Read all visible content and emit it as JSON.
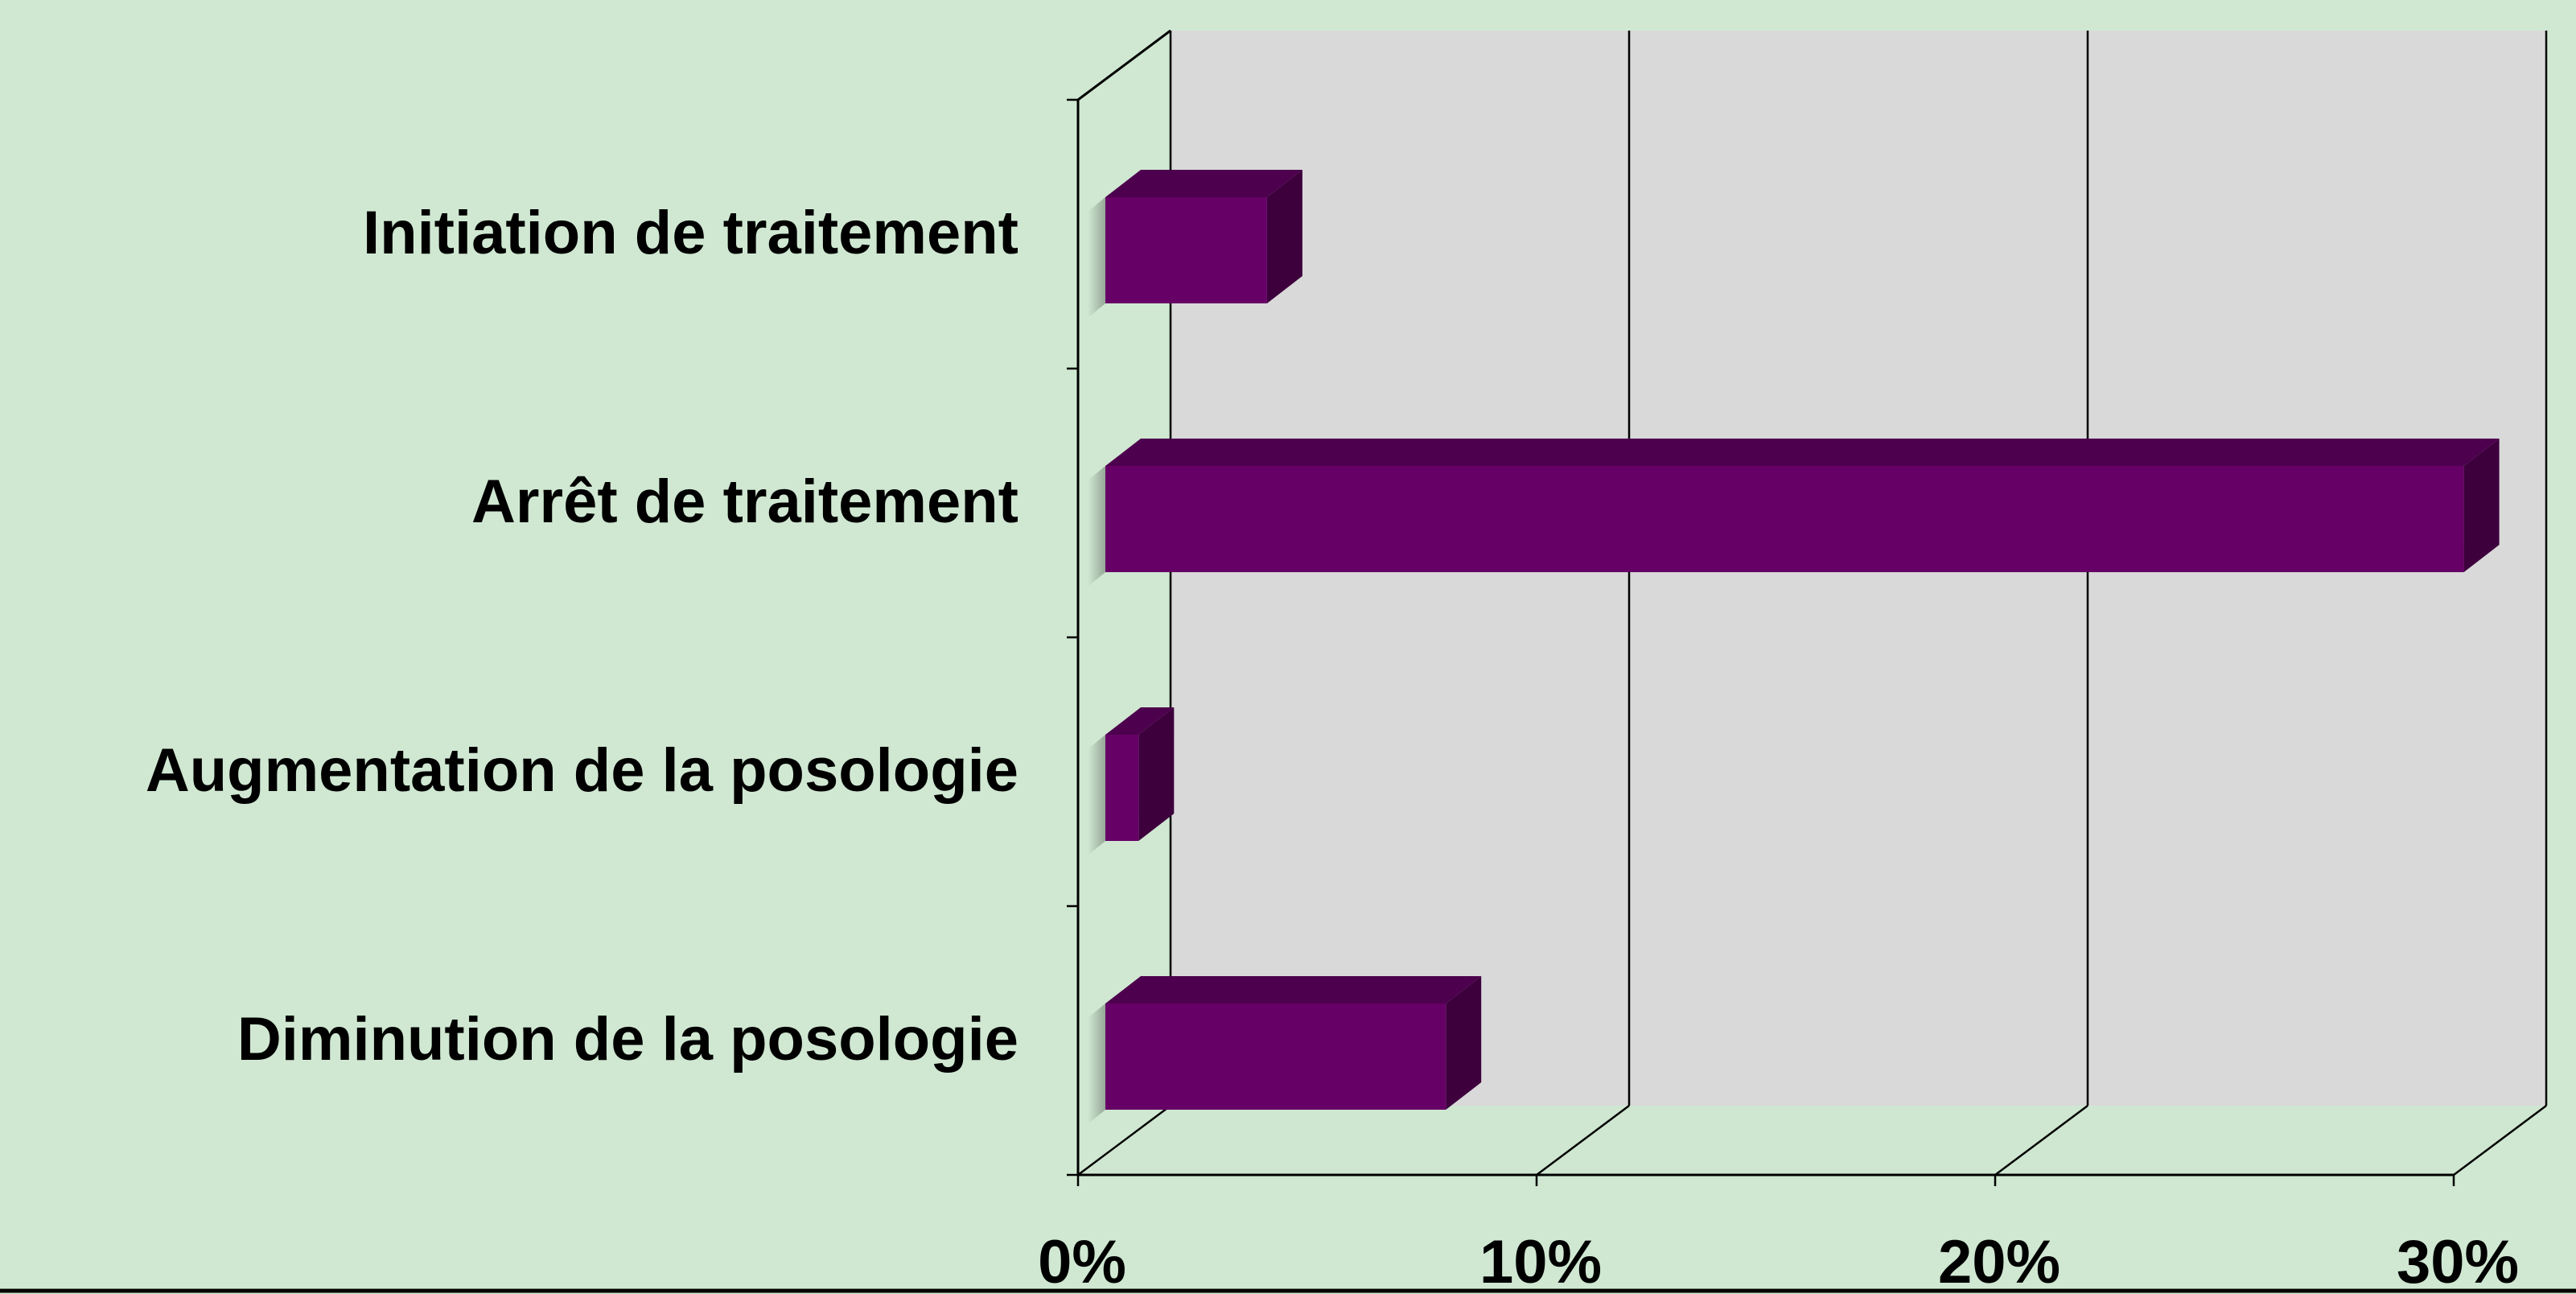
{
  "chart_data": {
    "type": "bar",
    "orientation": "horizontal",
    "style": "3d",
    "categories": [
      "Initiation de traitement",
      "Arrêt de traitement",
      "Augmentation de la posologie",
      "Diminution de la posologie"
    ],
    "values": [
      3.7,
      29.8,
      0.9,
      7.6
    ],
    "xlim": [
      0,
      30
    ],
    "xticks": [
      "0%",
      "10%",
      "20%",
      "30%"
    ],
    "grid": true,
    "legend": "none"
  },
  "colors": {
    "background": "#d0e8d2",
    "wall": "#d9d9d9",
    "floor": "#cfe7d1",
    "bar_front": "#660066",
    "bar_top": "#4d004d",
    "bar_side": "#3d003d",
    "axis": "#000000"
  }
}
